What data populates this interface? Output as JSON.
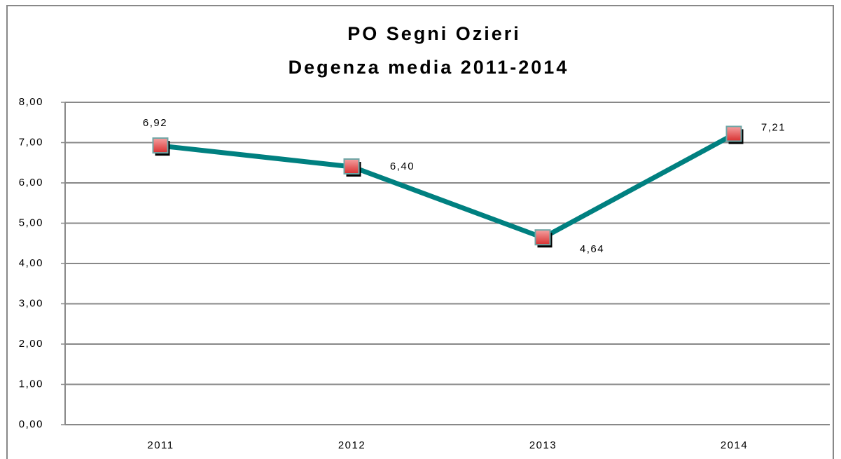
{
  "chart_data": {
    "type": "line",
    "title": "PO Segni Ozieri",
    "subtitle": "Degenza media 2011-2014",
    "categories": [
      "2011",
      "2012",
      "2013",
      "2014"
    ],
    "series": [
      {
        "color": "#008080",
        "values": [
          6.92,
          6.4,
          4.64,
          7.21
        ],
        "value_labels": [
          "6,92",
          "6,40",
          "4,64",
          "7,21"
        ]
      }
    ],
    "ylim": [
      0,
      8
    ],
    "yticks": [
      {
        "value": 0,
        "label": "0,00"
      },
      {
        "value": 1,
        "label": "1,00"
      },
      {
        "value": 2,
        "label": "2,00"
      },
      {
        "value": 3,
        "label": "3,00"
      },
      {
        "value": 4,
        "label": "4,00"
      },
      {
        "value": 5,
        "label": "5,00"
      },
      {
        "value": 6,
        "label": "6,00"
      },
      {
        "value": 7,
        "label": "7,00"
      },
      {
        "value": 8,
        "label": "8,00"
      }
    ],
    "grid": true
  }
}
